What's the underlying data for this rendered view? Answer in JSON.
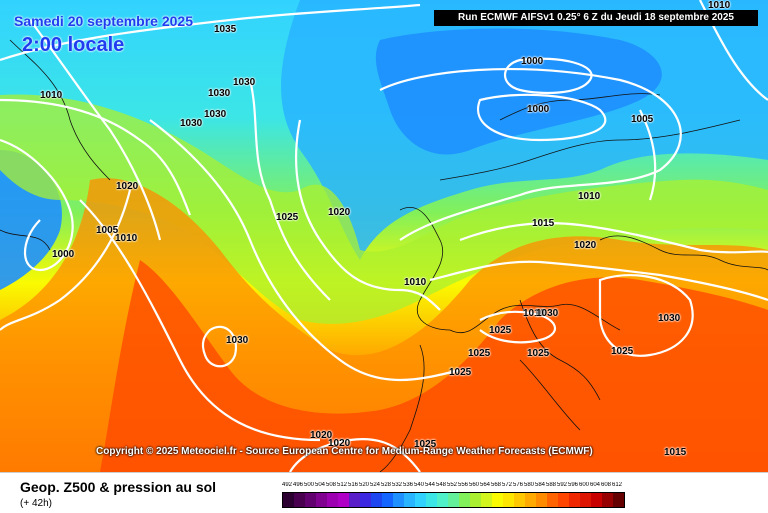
{
  "header": {
    "date": "Samedi 20 septembre 2025",
    "local_time": "2:00 locale",
    "run": "Run ECMWF AIFSv1 0.25° 6 Z du Jeudi 18 septembre 2025"
  },
  "copyright": "Copyright © 2025 Meteociel.fr - Source European Centre for Medium-Range Weather Forecasts (ECMWF)",
  "isobar_labels": [
    "1035",
    "1030",
    "1030",
    "1030",
    "1030",
    "1010",
    "1020",
    "1005",
    "1010",
    "1000",
    "1000",
    "1000",
    "1005",
    "1010",
    "1010",
    "1010",
    "1015",
    "1020",
    "1025",
    "1020",
    "1010",
    "1030",
    "1030",
    "1025",
    "1025",
    "1025",
    "1025",
    "1025",
    "1030",
    "1020",
    "1020",
    "1025",
    "1015"
  ],
  "footer": {
    "parameter": "Geop. Z500 & pression au sol",
    "lead": "(+ 42h)"
  },
  "legend": {
    "values": [
      "492",
      "496",
      "500",
      "504",
      "508",
      "512",
      "516",
      "520",
      "524",
      "528",
      "532",
      "536",
      "540",
      "544",
      "548",
      "552",
      "556",
      "560",
      "564",
      "568",
      "572",
      "576",
      "580",
      "584",
      "588",
      "592",
      "596",
      "600",
      "604",
      "608",
      "612"
    ],
    "colors": [
      "#2b0030",
      "#48004f",
      "#630070",
      "#800090",
      "#9c00b0",
      "#b000c8",
      "#5a1ec8",
      "#3c28e0",
      "#1e46f0",
      "#1464ff",
      "#1e90ff",
      "#28b4ff",
      "#32d2ff",
      "#3ce6e6",
      "#50f0c8",
      "#64f09a",
      "#82f05a",
      "#aaf030",
      "#d2f51e",
      "#fafa00",
      "#ffe600",
      "#ffc800",
      "#ffaa00",
      "#ff8c00",
      "#ff6400",
      "#ff4600",
      "#f02800",
      "#dc1400",
      "#c80000",
      "#960000",
      "#640000"
    ]
  }
}
